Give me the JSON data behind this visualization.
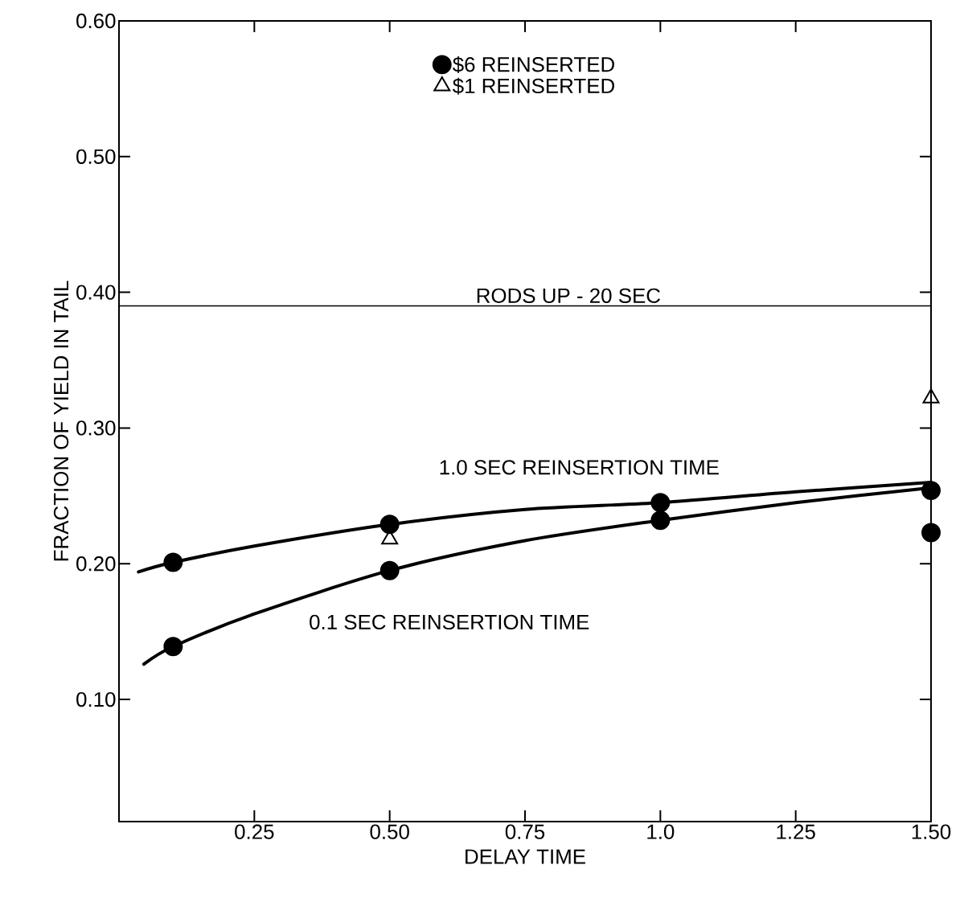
{
  "chart_data": {
    "type": "scatter",
    "xlabel": "DELAY TIME",
    "ylabel": "FRACTION OF YIELD IN TAIL",
    "xlim": [
      0,
      1.5
    ],
    "ylim": [
      0.01,
      0.6
    ],
    "xticks": [
      {
        "value": 0.25,
        "label": "0.25"
      },
      {
        "value": 0.5,
        "label": "0.50"
      },
      {
        "value": 0.75,
        "label": "0.75"
      },
      {
        "value": 1.0,
        "label": "1.0"
      },
      {
        "value": 1.25,
        "label": "1.25"
      },
      {
        "value": 1.5,
        "label": "1.50"
      }
    ],
    "yticks": [
      {
        "value": 0.1,
        "label": "0.10"
      },
      {
        "value": 0.2,
        "label": "0.20"
      },
      {
        "value": 0.3,
        "label": "0.30"
      },
      {
        "value": 0.4,
        "label": "0.40"
      },
      {
        "value": 0.5,
        "label": "0.50"
      },
      {
        "value": 0.6,
        "label": "0.60"
      }
    ],
    "legend": "top",
    "series": [
      {
        "name": "$6 REINSERTED",
        "marker": "circle",
        "color": "#000000",
        "x": [
          0.1,
          0.5,
          1.0,
          1.5,
          0.1,
          0.5,
          1.0,
          1.5
        ],
        "values": [
          0.201,
          0.229,
          0.245,
          0.254,
          0.139,
          0.195,
          0.232,
          0.223
        ]
      },
      {
        "name": "$1 REINSERTED",
        "marker": "triangle",
        "color": "#000000",
        "x": [
          0.5,
          1.5
        ],
        "values": [
          0.218,
          0.322
        ]
      },
      {
        "type": "line",
        "marker": "none",
        "color": "#000000",
        "x": [
          0.036,
          0.1,
          0.25,
          0.5,
          0.75,
          1.0,
          1.25,
          1.5
        ],
        "values": [
          0.194,
          0.201,
          0.213,
          0.229,
          0.24,
          0.245,
          0.253,
          0.26
        ]
      },
      {
        "type": "line",
        "marker": "none",
        "color": "#000000",
        "x": [
          0.046,
          0.1,
          0.25,
          0.5,
          0.75,
          1.0,
          1.25,
          1.5
        ],
        "values": [
          0.126,
          0.139,
          0.163,
          0.195,
          0.217,
          0.232,
          0.245,
          0.256
        ]
      }
    ],
    "ref_lines": [
      {
        "axis": "y",
        "value": 0.39,
        "label": "RODS UP - 20 SEC",
        "color": "#000000"
      }
    ],
    "annotations": [
      "1.0 SEC REINSERTION TIME",
      "0.1 SEC REINSERTION TIME"
    ]
  }
}
